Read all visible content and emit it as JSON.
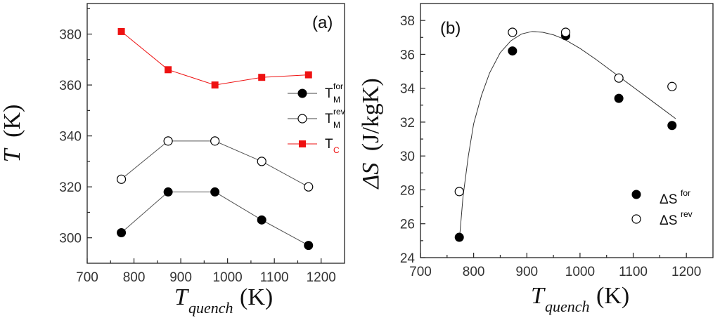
{
  "chart_data": [
    {
      "type": "line",
      "panel_label": "(a)",
      "xlabel": {
        "main": "T",
        "sub": "quench",
        "unit": "(K)"
      },
      "ylabel": {
        "main": "T",
        "unit": "(K)"
      },
      "xlim": [
        700,
        1250
      ],
      "ylim": [
        290,
        392
      ],
      "xticks": [
        700,
        800,
        900,
        1000,
        1100,
        1200
      ],
      "yticks": [
        300,
        320,
        340,
        360,
        380
      ],
      "x": [
        773,
        873,
        973,
        1073,
        1173
      ],
      "series": [
        {
          "name": "T_M^for",
          "legend_main": "T",
          "legend_sup": "for",
          "legend_sub": "M",
          "marker": "filled-circle",
          "color": "#000000",
          "values": [
            302,
            318,
            318,
            307,
            297
          ]
        },
        {
          "name": "T_M^rev",
          "legend_main": "T",
          "legend_sup": "rev",
          "legend_sub": "M",
          "marker": "open-circle",
          "color": "#000000",
          "values": [
            323,
            338,
            338,
            330,
            320
          ]
        },
        {
          "name": "T_C",
          "legend_main": "T",
          "legend_sup": "",
          "legend_sub": "C",
          "marker": "filled-square",
          "color": "#ee1111",
          "values": [
            381,
            366,
            360,
            363,
            364
          ]
        }
      ],
      "legend_position": "right-middle"
    },
    {
      "type": "scatter",
      "panel_label": "(b)",
      "xlabel": {
        "main": "T",
        "sub": "quench",
        "unit": "(K)"
      },
      "ylabel": {
        "main": "ΔS",
        "unit": "(J/kgK)"
      },
      "xlim": [
        700,
        1250
      ],
      "ylim": [
        24,
        39
      ],
      "xticks": [
        700,
        800,
        900,
        1000,
        1100,
        1200
      ],
      "yticks": [
        24,
        26,
        28,
        30,
        32,
        34,
        36,
        38
      ],
      "x": [
        773,
        873,
        973,
        1073,
        1173
      ],
      "series": [
        {
          "name": "ΔS^for",
          "legend_main": "ΔS",
          "legend_sup": "for",
          "marker": "filled-circle",
          "color": "#000000",
          "values": [
            25.2,
            36.2,
            37.1,
            33.4,
            31.8
          ]
        },
        {
          "name": "ΔS^rev",
          "legend_main": "ΔS",
          "legend_sup": "rev",
          "marker": "open-circle",
          "color": "#000000",
          "values": [
            27.9,
            37.3,
            37.3,
            34.6,
            34.1
          ]
        }
      ],
      "fit_curve": {
        "x": [
          773,
          780,
          790,
          800,
          815,
          830,
          850,
          870,
          890,
          910,
          930,
          950,
          970,
          1000,
          1030,
          1060,
          1090,
          1120,
          1150,
          1180
        ],
        "y": [
          25.0,
          27.6,
          30.0,
          31.9,
          33.6,
          34.9,
          36.1,
          36.8,
          37.2,
          37.35,
          37.3,
          37.15,
          36.9,
          36.35,
          35.7,
          35.0,
          34.3,
          33.6,
          32.9,
          32.2
        ]
      },
      "legend_position": "bottom-right"
    }
  ]
}
